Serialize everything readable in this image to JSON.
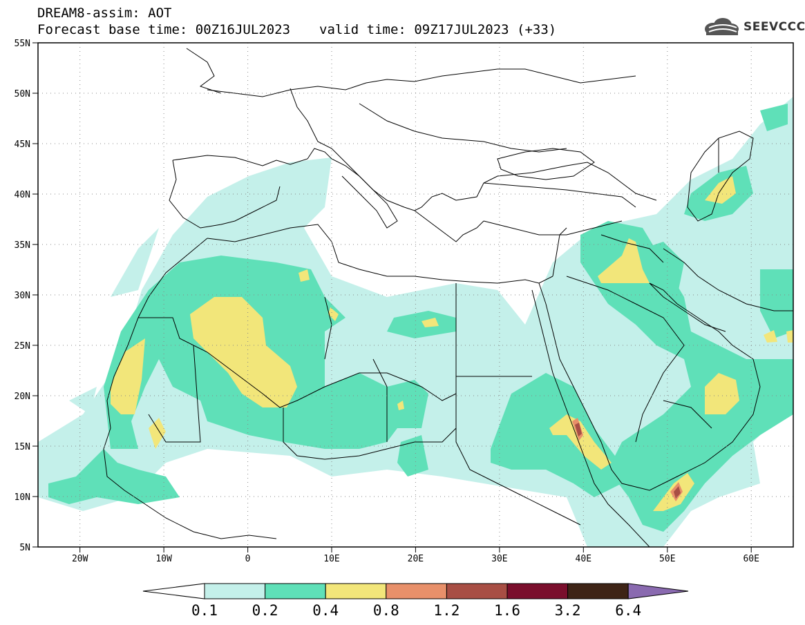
{
  "title": {
    "line1": "DREAM8-assim: AOT",
    "base": "Forecast base time: 00Z16JUL2023",
    "valid": "valid time: 09Z17JUL2023 (+33)"
  },
  "logo": {
    "text": "SEEVCCC",
    "icon": "cloud-logo-icon"
  },
  "map": {
    "projection": "lat-lon",
    "lon_range": [
      -25,
      65
    ],
    "lat_range": [
      5,
      55
    ],
    "lon_ticks": [
      "20W",
      "10W",
      "0",
      "10E",
      "20E",
      "30E",
      "40E",
      "50E",
      "60E"
    ],
    "lat_ticks": [
      "55N",
      "50N",
      "45N",
      "40N",
      "35N",
      "30N",
      "25N",
      "20N",
      "15N",
      "10N",
      "5N"
    ],
    "grid": "dotted"
  },
  "colorbar": {
    "labels": [
      "0.1",
      "0.2",
      "0.4",
      "0.8",
      "1.2",
      "1.6",
      "3.2",
      "6.4"
    ],
    "colors": [
      "#c4f0ea",
      "#5fe0b8",
      "#f2e67a",
      "#e8906a",
      "#a84e44",
      "#7a0e2c",
      "#3e2416",
      "#8a6ab0"
    ]
  }
}
